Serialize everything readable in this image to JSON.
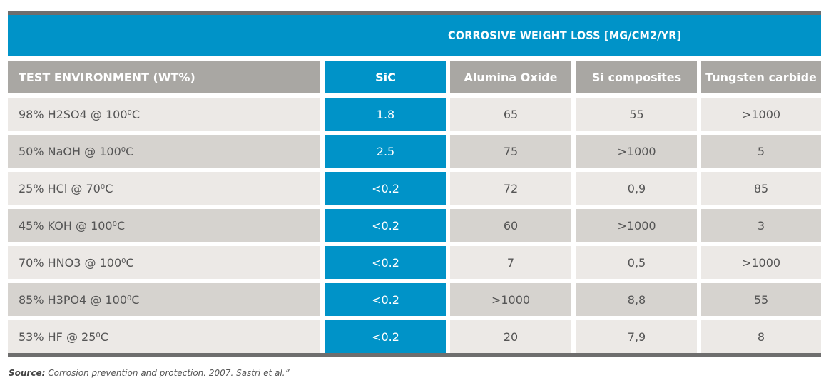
{
  "banner": {
    "title": "CORROSIVE WEIGHT LOSS [MG/CM2/YR]"
  },
  "header": {
    "env": "TEST ENVIRONMENT (WT%)",
    "sic": "SiC",
    "alumina": "Alumina Oxide",
    "si_comp": "Si composites",
    "tungsten": "Tungsten carbide"
  },
  "rows": [
    {
      "env": "98% H2SO4 @ 100",
      "deg": "0",
      "unit": " C",
      "sic": "1.8",
      "alumina": "65",
      "si_comp": "55",
      "tungsten": ">1000"
    },
    {
      "env": "50% NaOH @ 100",
      "deg": "0",
      "unit": " C",
      "sic": "2.5",
      "alumina": "75",
      "si_comp": ">1000",
      "tungsten": "5"
    },
    {
      "env": "25% HCl @ 70",
      "deg": "0",
      "unit": " C",
      "sic": "<0.2",
      "alumina": "72",
      "si_comp": "0,9",
      "tungsten": "85"
    },
    {
      "env": "45% KOH @ 100",
      "deg": "0",
      "unit": " C",
      "sic": "<0.2",
      "alumina": "60",
      "si_comp": ">1000",
      "tungsten": "3"
    },
    {
      "env": "70% HNO3 @ 100",
      "deg": "0",
      "unit": " C",
      "sic": "<0.2",
      "alumina": "7",
      "si_comp": "0,5",
      "tungsten": ">1000"
    },
    {
      "env": "85% H3PO4 @ 100",
      "deg": "0",
      "unit": " C",
      "sic": "<0.2",
      "alumina": ">1000",
      "si_comp": "8,8",
      "tungsten": "55"
    },
    {
      "env": "53% HF @ 25",
      "deg": "0",
      "unit": " C",
      "sic": "<0.2",
      "alumina": "20",
      "si_comp": "7,9",
      "tungsten": "8"
    }
  ],
  "source": {
    "label": "Source:",
    "text": " Corrosion prevention and protection. 2007. Sastri et al.”"
  },
  "colors": {
    "accent_blue": "#0093c8",
    "header_gray": "#a9a7a3",
    "row_light": "#ece9e6",
    "row_dark": "#d6d3cf",
    "bar_gray": "#6e6e6e"
  }
}
